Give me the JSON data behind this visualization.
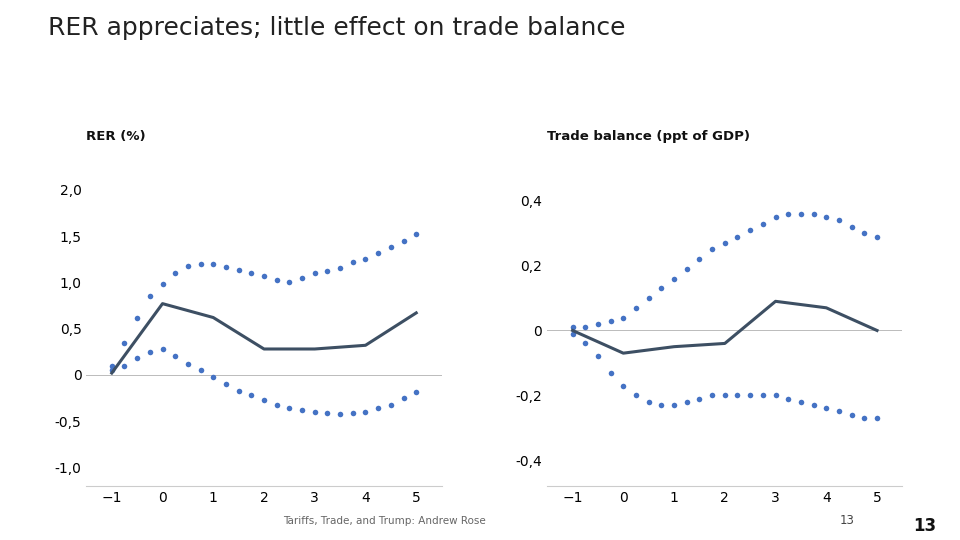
{
  "title": "RER appreciates; little effect on trade balance",
  "title_fontsize": 18,
  "left_label": "RER (%)",
  "right_label": "Trade balance (ppt of GDP)",
  "label_fontsize": 9.5,
  "footer": "Tariffs, Trade, and Trump: Andrew Rose",
  "footer_num": "13",
  "x": [
    -1,
    0,
    1,
    2,
    3,
    4,
    5
  ],
  "rer_solid": [
    0.02,
    0.77,
    0.62,
    0.28,
    0.28,
    0.32,
    0.67
  ],
  "rer_upper_x": [
    -1,
    -0.75,
    -0.5,
    -0.25,
    0,
    0.25,
    0.5,
    0.75,
    1,
    1.25,
    1.5,
    1.75,
    2,
    2.25,
    2.5,
    2.75,
    3,
    3.25,
    3.5,
    3.75,
    4,
    4.25,
    4.5,
    4.75,
    5
  ],
  "rer_upper_y": [
    0.1,
    0.35,
    0.62,
    0.85,
    0.98,
    1.1,
    1.18,
    1.2,
    1.2,
    1.17,
    1.13,
    1.1,
    1.07,
    1.03,
    1.0,
    1.05,
    1.1,
    1.12,
    1.15,
    1.22,
    1.25,
    1.32,
    1.38,
    1.45,
    1.52
  ],
  "rer_lower_y": [
    0.05,
    0.1,
    0.18,
    0.25,
    0.28,
    0.2,
    0.12,
    0.05,
    -0.02,
    -0.1,
    -0.17,
    -0.22,
    -0.27,
    -0.32,
    -0.36,
    -0.38,
    -0.4,
    -0.41,
    -0.42,
    -0.41,
    -0.4,
    -0.36,
    -0.32,
    -0.25,
    -0.18
  ],
  "tb_solid": [
    0.0,
    -0.07,
    -0.05,
    -0.04,
    0.09,
    0.07,
    0.0
  ],
  "tb_upper_x": [
    -1,
    -0.75,
    -0.5,
    -0.25,
    0,
    0.25,
    0.5,
    0.75,
    1,
    1.25,
    1.5,
    1.75,
    2,
    2.25,
    2.5,
    2.75,
    3,
    3.25,
    3.5,
    3.75,
    4,
    4.25,
    4.5,
    4.75,
    5
  ],
  "tb_upper_y": [
    0.01,
    0.01,
    0.02,
    0.03,
    0.04,
    0.07,
    0.1,
    0.13,
    0.16,
    0.19,
    0.22,
    0.25,
    0.27,
    0.29,
    0.31,
    0.33,
    0.35,
    0.36,
    0.36,
    0.36,
    0.35,
    0.34,
    0.32,
    0.3,
    0.29
  ],
  "tb_lower_y": [
    -0.01,
    -0.04,
    -0.08,
    -0.13,
    -0.17,
    -0.2,
    -0.22,
    -0.23,
    -0.23,
    -0.22,
    -0.21,
    -0.2,
    -0.2,
    -0.2,
    -0.2,
    -0.2,
    -0.2,
    -0.21,
    -0.22,
    -0.23,
    -0.24,
    -0.25,
    -0.26,
    -0.27,
    -0.27
  ],
  "solid_color": "#3D4F63",
  "dot_color": "#4472C4",
  "background_color": "#FFFFFF",
  "left_ylim": [
    -1.2,
    2.3
  ],
  "right_ylim": [
    -0.48,
    0.52
  ],
  "left_yticks": [
    -1.0,
    -0.5,
    0.0,
    0.5,
    1.0,
    1.5,
    2.0
  ],
  "right_yticks": [
    -0.4,
    -0.2,
    0.0,
    0.2,
    0.4
  ],
  "xticks": [
    -1,
    0,
    1,
    2,
    3,
    4,
    5
  ]
}
